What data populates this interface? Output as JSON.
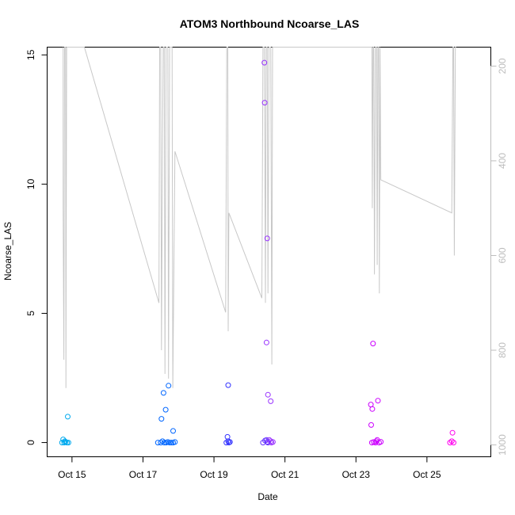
{
  "chart_data": {
    "type": "scatter",
    "title": "ATOM3 Northbound Ncoarse_LAS",
    "xlabel": "Date",
    "ylabel": "Ncoarse_LAS",
    "x_unit": "day of October",
    "xlim": [
      14.3,
      26.8
    ],
    "ylim": [
      -0.55,
      15.3
    ],
    "x_ticks": [
      15,
      17,
      19,
      21,
      23,
      25
    ],
    "x_tick_labels": [
      "Oct 15",
      "Oct 17",
      "Oct 19",
      "Oct 21",
      "Oct 23",
      "Oct 25"
    ],
    "y_ticks": [
      0,
      5,
      10,
      15
    ],
    "y_tick_labels": [
      "0",
      "5",
      "10",
      "15"
    ],
    "y2_ticks": [
      200,
      400,
      600,
      800,
      1000
    ],
    "y2_tick_labels": [
      "200",
      "400",
      "600",
      "800",
      "1000"
    ],
    "y2_lim": [
      1025,
      160
    ],
    "y2_reversed": true,
    "grid": false,
    "legend": "none",
    "colors": {
      "secondary_line": "#c8c8c8",
      "secondary_axis": "#bdbdbd",
      "point_palette": [
        "#00aaee",
        "#0066ff",
        "#3333ff",
        "#6633ff",
        "#9933ff",
        "#cc00ff",
        "#ff00ee"
      ]
    },
    "series": [
      {
        "type": "scatter",
        "marker": "open-circle",
        "points": [
          {
            "x": 14.75,
            "y": 0.12,
            "c": 0
          },
          {
            "x": 14.8,
            "y": 0.05,
            "c": 0
          },
          {
            "x": 14.78,
            "y": 0.0,
            "c": 0
          },
          {
            "x": 14.82,
            "y": 0.02,
            "c": 0
          },
          {
            "x": 14.86,
            "y": 0.0,
            "c": 0
          },
          {
            "x": 14.9,
            "y": 0.0,
            "c": 0
          },
          {
            "x": 14.88,
            "y": 1.0,
            "c": 0
          },
          {
            "x": 14.72,
            "y": 0.0,
            "c": 0
          },
          {
            "x": 17.42,
            "y": 0.0,
            "c": 1
          },
          {
            "x": 17.5,
            "y": 0.0,
            "c": 1
          },
          {
            "x": 17.55,
            "y": 0.05,
            "c": 1
          },
          {
            "x": 17.6,
            "y": 0.0,
            "c": 1
          },
          {
            "x": 17.65,
            "y": 0.0,
            "c": 1
          },
          {
            "x": 17.7,
            "y": 0.02,
            "c": 1
          },
          {
            "x": 17.75,
            "y": 0.0,
            "c": 1
          },
          {
            "x": 17.8,
            "y": 0.0,
            "c": 1
          },
          {
            "x": 17.85,
            "y": 0.0,
            "c": 1
          },
          {
            "x": 17.9,
            "y": 0.02,
            "c": 1
          },
          {
            "x": 17.52,
            "y": 0.92,
            "c": 1
          },
          {
            "x": 17.58,
            "y": 1.92,
            "c": 1
          },
          {
            "x": 17.64,
            "y": 1.27,
            "c": 1
          },
          {
            "x": 17.72,
            "y": 2.2,
            "c": 1
          },
          {
            "x": 17.85,
            "y": 0.45,
            "c": 1
          },
          {
            "x": 19.35,
            "y": 0.0,
            "c": 2
          },
          {
            "x": 19.4,
            "y": 0.05,
            "c": 2
          },
          {
            "x": 19.42,
            "y": 0.0,
            "c": 2
          },
          {
            "x": 19.45,
            "y": 0.02,
            "c": 2
          },
          {
            "x": 19.38,
            "y": 0.22,
            "c": 2
          },
          {
            "x": 19.4,
            "y": 2.22,
            "c": 2
          },
          {
            "x": 20.42,
            "y": 14.7,
            "c": 4
          },
          {
            "x": 20.43,
            "y": 13.15,
            "c": 4
          },
          {
            "x": 20.5,
            "y": 7.9,
            "c": 4
          },
          {
            "x": 20.48,
            "y": 3.87,
            "c": 4
          },
          {
            "x": 20.52,
            "y": 1.85,
            "c": 4
          },
          {
            "x": 20.6,
            "y": 1.6,
            "c": 4
          },
          {
            "x": 20.38,
            "y": 0.0,
            "c": 3
          },
          {
            "x": 20.44,
            "y": 0.08,
            "c": 3
          },
          {
            "x": 20.48,
            "y": 0.1,
            "c": 3
          },
          {
            "x": 20.52,
            "y": 0.0,
            "c": 3
          },
          {
            "x": 20.56,
            "y": 0.1,
            "c": 4
          },
          {
            "x": 20.6,
            "y": 0.05,
            "c": 4
          },
          {
            "x": 20.62,
            "y": 0.0,
            "c": 4
          },
          {
            "x": 20.66,
            "y": 0.02,
            "c": 4
          },
          {
            "x": 20.5,
            "y": 0.03,
            "c": 3
          },
          {
            "x": 23.42,
            "y": 1.47,
            "c": 5
          },
          {
            "x": 23.46,
            "y": 1.3,
            "c": 5
          },
          {
            "x": 23.48,
            "y": 3.83,
            "c": 5
          },
          {
            "x": 23.43,
            "y": 0.68,
            "c": 5
          },
          {
            "x": 23.62,
            "y": 1.62,
            "c": 5
          },
          {
            "x": 23.45,
            "y": 0.0,
            "c": 5
          },
          {
            "x": 23.5,
            "y": 0.02,
            "c": 5
          },
          {
            "x": 23.55,
            "y": 0.0,
            "c": 5
          },
          {
            "x": 23.6,
            "y": 0.1,
            "c": 5
          },
          {
            "x": 23.65,
            "y": 0.0,
            "c": 5
          },
          {
            "x": 23.7,
            "y": 0.03,
            "c": 5
          },
          {
            "x": 23.58,
            "y": 0.05,
            "c": 5
          },
          {
            "x": 25.65,
            "y": 0.0,
            "c": 6
          },
          {
            "x": 25.7,
            "y": 0.05,
            "c": 6
          },
          {
            "x": 25.75,
            "y": 0.0,
            "c": 6
          },
          {
            "x": 25.72,
            "y": 0.38,
            "c": 6
          }
        ]
      },
      {
        "type": "line",
        "axis": "y2",
        "points": [
          [
            14.75,
            160
          ],
          [
            14.75,
            500
          ],
          [
            14.77,
            820
          ],
          [
            14.79,
            160
          ],
          [
            14.82,
            160
          ],
          [
            14.83,
            880
          ],
          [
            14.85,
            160
          ],
          [
            15.35,
            160
          ],
          [
            17.45,
            700
          ],
          [
            17.47,
            160
          ],
          [
            17.5,
            160
          ],
          [
            17.52,
            800
          ],
          [
            17.55,
            380
          ],
          [
            17.57,
            160
          ],
          [
            17.6,
            160
          ],
          [
            17.62,
            850
          ],
          [
            17.65,
            160
          ],
          [
            17.7,
            160
          ],
          [
            17.72,
            860
          ],
          [
            17.75,
            160
          ],
          [
            17.82,
            160
          ],
          [
            17.84,
            880
          ],
          [
            17.9,
            380
          ],
          [
            19.33,
            720
          ],
          [
            19.36,
            160
          ],
          [
            19.39,
            160
          ],
          [
            19.4,
            760
          ],
          [
            19.42,
            510
          ],
          [
            20.35,
            690
          ],
          [
            20.38,
            160
          ],
          [
            20.42,
            160
          ],
          [
            20.45,
            700
          ],
          [
            20.47,
            160
          ],
          [
            20.5,
            160
          ],
          [
            20.52,
            680
          ],
          [
            20.55,
            160
          ],
          [
            20.6,
            160
          ],
          [
            20.63,
            830
          ],
          [
            20.65,
            160
          ],
          [
            20.68,
            160
          ],
          [
            23.42,
            160
          ],
          [
            23.45,
            160
          ],
          [
            23.46,
            500
          ],
          [
            23.48,
            160
          ],
          [
            23.5,
            160
          ],
          [
            23.52,
            640
          ],
          [
            23.55,
            160
          ],
          [
            23.58,
            160
          ],
          [
            23.6,
            620
          ],
          [
            23.62,
            160
          ],
          [
            23.64,
            160
          ],
          [
            23.66,
            680
          ],
          [
            23.68,
            160
          ],
          [
            23.7,
            440
          ],
          [
            25.7,
            510
          ],
          [
            25.73,
            160
          ],
          [
            25.75,
            160
          ],
          [
            25.77,
            600
          ],
          [
            25.8,
            160
          ],
          [
            25.82,
            160
          ]
        ]
      }
    ]
  }
}
